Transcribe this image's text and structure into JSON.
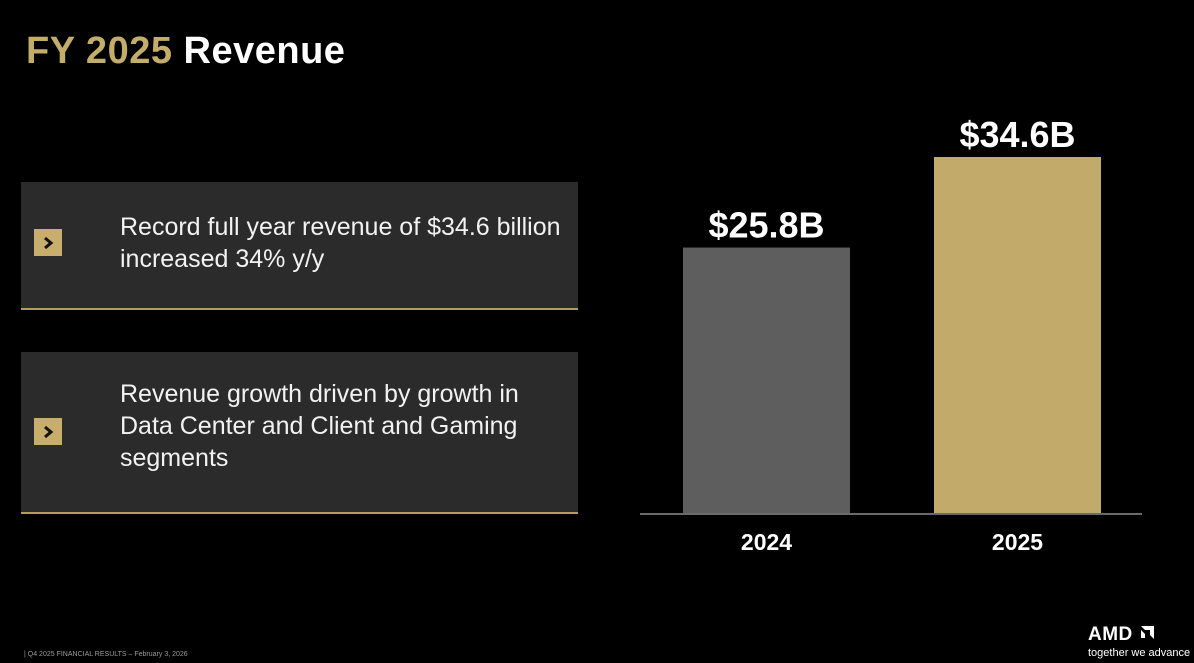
{
  "title": {
    "accent": "FY 2025",
    "main": "Revenue"
  },
  "bullets": [
    {
      "icon": "chevron-right-icon",
      "text": "Record full year revenue of $34.6 billion increased 34% y/y"
    },
    {
      "icon": "chevron-right-icon",
      "text": "Revenue growth driven by growth in Data Center and Client and Gaming segments"
    }
  ],
  "chart_data": {
    "type": "bar",
    "title": "",
    "xlabel": "",
    "ylabel": "",
    "categories": [
      "2024",
      "2025"
    ],
    "values": [
      25.8,
      34.6
    ],
    "value_labels": [
      "$25.8B",
      "$34.6B"
    ],
    "ylim": [
      0,
      34.6
    ],
    "colors": [
      "#5e5e5e",
      "#c2aa6a"
    ],
    "grid": false
  },
  "footer": {
    "text": "| Q4 2025 FINANCIAL RESULTS – February 3, 2026"
  },
  "logo": {
    "text": "AMD",
    "icon": "amd-arrow-logo-icon",
    "tagline": "together we advance"
  },
  "colors": {
    "accent": "#c4ac6a",
    "card_bg": "#2b2b2b",
    "background": "#000000"
  }
}
